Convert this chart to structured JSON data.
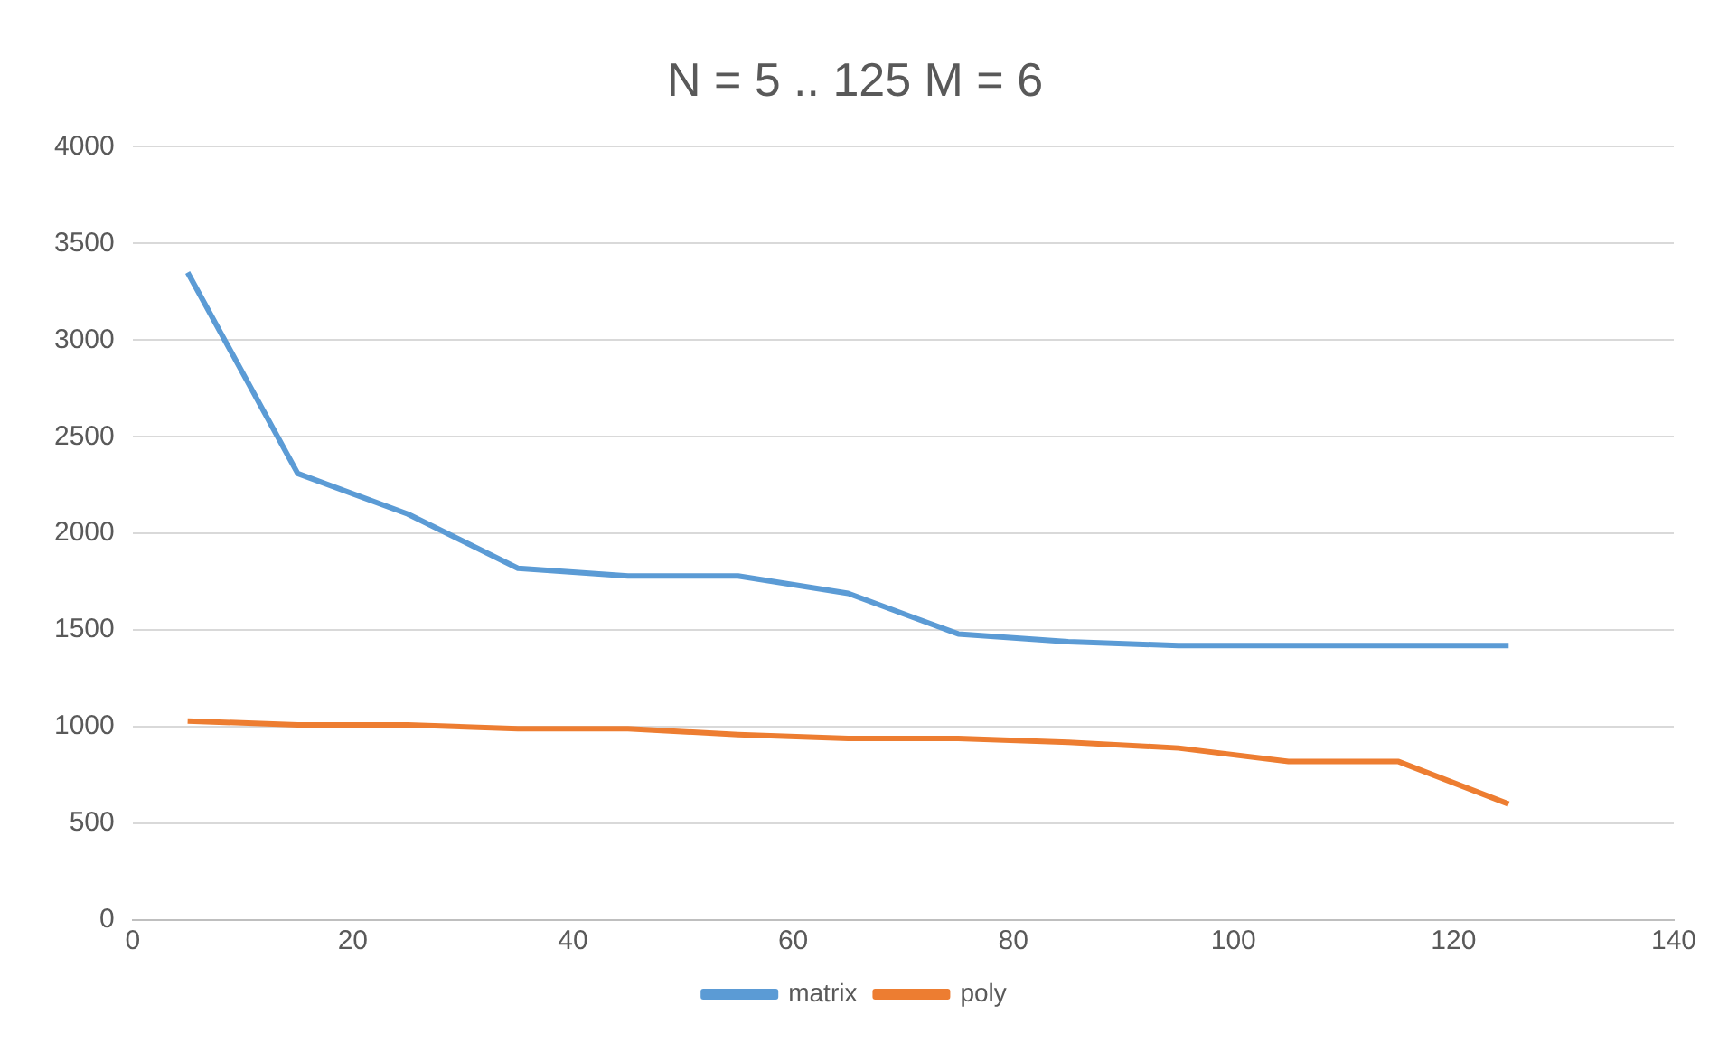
{
  "chart_data": {
    "type": "line",
    "title": "N = 5 .. 125 M = 6",
    "x": [
      5,
      15,
      25,
      35,
      45,
      55,
      65,
      75,
      85,
      95,
      105,
      115,
      125
    ],
    "series": [
      {
        "name": "matrix",
        "color": "#5b9bd5",
        "values": [
          3350,
          2310,
          2100,
          1820,
          1780,
          1780,
          1690,
          1480,
          1440,
          1420,
          1420,
          1420,
          1420
        ]
      },
      {
        "name": "poly",
        "color": "#ed7d31",
        "values": [
          1030,
          1010,
          1010,
          990,
          990,
          960,
          940,
          940,
          920,
          890,
          820,
          820,
          600
        ]
      }
    ],
    "xlim": [
      0,
      140
    ],
    "xticks": [
      0,
      20,
      40,
      60,
      80,
      100,
      120,
      140
    ],
    "ylim": [
      0,
      4000
    ],
    "yticks": [
      0,
      500,
      1000,
      1500,
      2000,
      2500,
      3000,
      3500,
      4000
    ],
    "grid": "y",
    "legend": "bottom",
    "marker": "none",
    "line_style": "solid"
  }
}
